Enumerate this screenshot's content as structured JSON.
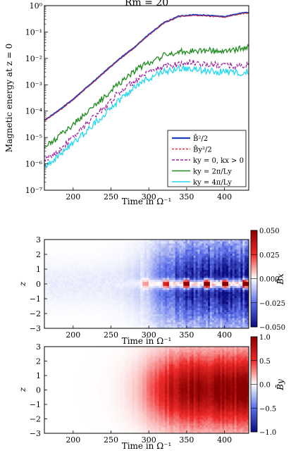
{
  "chart_data": [
    {
      "type": "line",
      "title": "Rm = 20",
      "xlabel": "Time in Ω⁻¹",
      "ylabel": "Magnetic energy at z = 0",
      "xlim": [
        162,
        432
      ],
      "ylim_log10": [
        -7,
        0
      ],
      "yscale": "log",
      "xticks": [
        "200",
        "250",
        "300",
        "350",
        "400"
      ],
      "yticks": [
        "10⁻⁷",
        "10⁻⁶",
        "10⁻⁵",
        "10⁻⁴",
        "10⁻³",
        "10⁻²",
        "10⁻¹",
        "10⁰"
      ],
      "legend_position": "lower-right",
      "series": [
        {
          "name": "B̄²/2",
          "color": "#1f3fbf",
          "style": "solid",
          "x": [
            162,
            180,
            200,
            220,
            240,
            260,
            280,
            300,
            320,
            340,
            360,
            380,
            400,
            420,
            432
          ],
          "log10": [
            -4.35,
            -4.0,
            -3.55,
            -3.05,
            -2.55,
            -2.05,
            -1.6,
            -1.1,
            -0.65,
            -0.4,
            -0.35,
            -0.38,
            -0.42,
            -0.3,
            -0.26
          ]
        },
        {
          "name": "B̄y²/2",
          "color": "#e03030",
          "style": "dashed",
          "x": [
            162,
            180,
            200,
            220,
            240,
            260,
            280,
            300,
            320,
            340,
            360,
            380,
            400,
            420,
            432
          ],
          "log10": [
            -4.36,
            -4.02,
            -3.57,
            -3.07,
            -2.57,
            -2.07,
            -1.62,
            -1.12,
            -0.67,
            -0.42,
            -0.37,
            -0.4,
            -0.44,
            -0.32,
            -0.28
          ]
        },
        {
          "name": "ky = 0, kx > 0",
          "color": "#a020a0",
          "style": "dashed",
          "x": [
            162,
            180,
            200,
            220,
            240,
            260,
            280,
            300,
            320,
            340,
            360,
            380,
            400,
            420,
            432
          ],
          "log10": [
            -5.9,
            -5.5,
            -5.0,
            -4.4,
            -3.9,
            -3.3,
            -2.9,
            -2.55,
            -2.3,
            -2.2,
            -2.15,
            -2.25,
            -2.25,
            -2.3,
            -2.25
          ]
        },
        {
          "name": "ky = 2π/Ly",
          "color": "#1e8c1e",
          "style": "solid",
          "x": [
            162,
            180,
            200,
            220,
            240,
            260,
            280,
            300,
            320,
            340,
            360,
            380,
            400,
            420,
            432
          ],
          "log10": [
            -5.4,
            -5.0,
            -4.5,
            -4.0,
            -3.5,
            -2.95,
            -2.5,
            -2.15,
            -1.9,
            -1.75,
            -1.7,
            -1.7,
            -1.75,
            -1.65,
            -1.55
          ]
        },
        {
          "name": "ky = 4π/Ly",
          "color": "#22d8f0",
          "style": "solid",
          "x": [
            162,
            180,
            200,
            220,
            240,
            260,
            280,
            300,
            320,
            340,
            360,
            380,
            400,
            420,
            432
          ],
          "log10": [
            -6.1,
            -5.7,
            -5.2,
            -4.7,
            -4.15,
            -3.6,
            -3.1,
            -2.75,
            -2.5,
            -2.4,
            -2.4,
            -2.5,
            -2.5,
            -2.55,
            -2.5
          ]
        }
      ]
    },
    {
      "type": "heatmap",
      "xlabel": "Time in Ω⁻¹",
      "ylabel": "z",
      "xlim": [
        162,
        432
      ],
      "ylim": [
        -3,
        3
      ],
      "xticks": [
        "200",
        "250",
        "300",
        "350",
        "400"
      ],
      "yticks": [
        "−3",
        "−2",
        "−1",
        "0",
        "1",
        "2",
        "3"
      ],
      "colorbar_label": "B̄x",
      "clim": [
        -0.05,
        0.05
      ],
      "colorbar_ticks": [
        "0.050",
        "0.025",
        "0.000",
        "−0.025",
        "−0.050"
      ],
      "colormap": [
        "#0b0b7e",
        "#ffffff",
        "#8a0000"
      ]
    },
    {
      "type": "heatmap",
      "xlabel": "Time in Ω⁻¹",
      "ylabel": "z",
      "xlim": [
        162,
        432
      ],
      "ylim": [
        -3,
        3
      ],
      "xticks": [
        "200",
        "250",
        "300",
        "350",
        "400"
      ],
      "yticks": [
        "−3",
        "−2",
        "−1",
        "0",
        "1",
        "2",
        "3"
      ],
      "colorbar_label": "B̄y",
      "clim": [
        -1,
        1
      ],
      "colorbar_ticks": [
        "1.0",
        "0.5",
        "0.0",
        "−0.5",
        "−1.0"
      ],
      "colormap": [
        "#0b0b7e",
        "#ffffff",
        "#8a0000"
      ]
    }
  ]
}
